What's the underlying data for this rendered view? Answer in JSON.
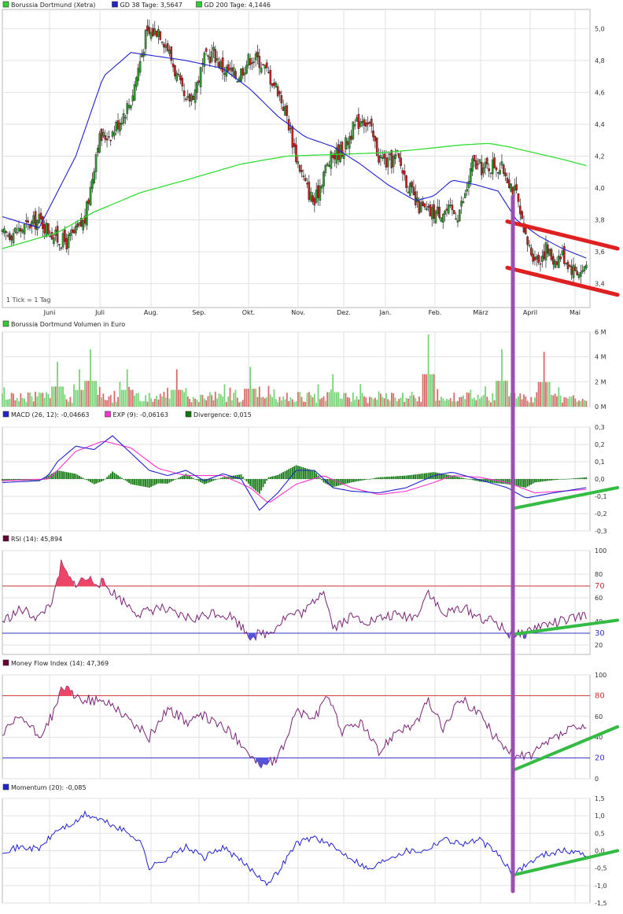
{
  "chart_data": [
    {
      "type": "candlestick",
      "legend": [
        {
          "label": "Borussia Dortmund (Xetra)",
          "color": "#33cc33"
        },
        {
          "label": "GD 38 Tage: 3,5647",
          "color": "#2222cc"
        },
        {
          "label": "GD 200 Tage: 4,1446",
          "color": "#33cc33"
        }
      ],
      "note": "1 Tick = 1 Tag",
      "months": [
        "Juni",
        "Juli",
        "Aug.",
        "Sep.",
        "Okt.",
        "Nov.",
        "Dez.",
        "Jan.",
        "Feb.",
        "März",
        "April",
        "Mai"
      ],
      "y_ticks": [
        "5,0",
        "4,8",
        "4,6",
        "4,4",
        "4,2",
        "4,0",
        "3,8",
        "3,6",
        "3,4"
      ],
      "ylim": [
        3.25,
        5.12
      ],
      "close_path": [
        [
          0,
          3.7
        ],
        [
          10,
          3.74
        ],
        [
          20,
          3.8
        ],
        [
          30,
          3.68
        ],
        [
          35,
          3.66
        ],
        [
          40,
          3.72
        ],
        [
          45,
          3.8
        ],
        [
          48,
          4.0
        ],
        [
          52,
          4.3
        ],
        [
          60,
          4.35
        ],
        [
          65,
          4.45
        ],
        [
          70,
          4.55
        ],
        [
          78,
          4.95
        ],
        [
          85,
          5.0
        ],
        [
          90,
          4.88
        ],
        [
          95,
          4.7
        ],
        [
          100,
          4.52
        ],
        [
          105,
          4.62
        ],
        [
          110,
          4.8
        ],
        [
          115,
          4.85
        ],
        [
          120,
          4.75
        ],
        [
          128,
          4.7
        ],
        [
          135,
          4.82
        ],
        [
          140,
          4.8
        ],
        [
          150,
          4.62
        ],
        [
          155,
          4.45
        ],
        [
          160,
          4.2
        ],
        [
          165,
          4.02
        ],
        [
          170,
          3.9
        ],
        [
          175,
          4.1
        ],
        [
          180,
          4.2
        ],
        [
          186,
          4.25
        ],
        [
          190,
          4.35
        ],
        [
          196,
          4.45
        ],
        [
          200,
          4.38
        ],
        [
          205,
          4.2
        ],
        [
          210,
          4.15
        ],
        [
          215,
          4.2
        ],
        [
          220,
          4.05
        ],
        [
          225,
          3.9
        ],
        [
          232,
          3.84
        ],
        [
          240,
          3.86
        ],
        [
          248,
          3.84
        ],
        [
          252,
          3.95
        ],
        [
          256,
          4.15
        ],
        [
          262,
          4.12
        ],
        [
          268,
          4.15
        ],
        [
          274,
          4.1
        ],
        [
          280,
          3.95
        ],
        [
          284,
          3.7
        ],
        [
          288,
          3.6
        ],
        [
          292,
          3.55
        ],
        [
          296,
          3.62
        ],
        [
          300,
          3.55
        ],
        [
          305,
          3.58
        ],
        [
          310,
          3.5
        ],
        [
          315,
          3.47
        ],
        [
          318,
          3.52
        ]
      ],
      "ma38_path": [
        [
          0,
          3.82
        ],
        [
          20,
          3.75
        ],
        [
          40,
          4.2
        ],
        [
          55,
          4.7
        ],
        [
          70,
          4.85
        ],
        [
          100,
          4.8
        ],
        [
          120,
          4.75
        ],
        [
          135,
          4.62
        ],
        [
          150,
          4.45
        ],
        [
          165,
          4.32
        ],
        [
          180,
          4.26
        ],
        [
          195,
          4.15
        ],
        [
          210,
          4.02
        ],
        [
          225,
          3.92
        ],
        [
          235,
          3.95
        ],
        [
          245,
          4.05
        ],
        [
          258,
          4.02
        ],
        [
          270,
          3.98
        ],
        [
          280,
          3.8
        ],
        [
          292,
          3.7
        ],
        [
          305,
          3.62
        ],
        [
          318,
          3.56
        ]
      ],
      "ma200_path": [
        [
          0,
          3.62
        ],
        [
          30,
          3.72
        ],
        [
          50,
          3.85
        ],
        [
          75,
          3.97
        ],
        [
          100,
          4.05
        ],
        [
          130,
          4.15
        ],
        [
          155,
          4.2
        ],
        [
          180,
          4.21
        ],
        [
          205,
          4.22
        ],
        [
          225,
          4.24
        ],
        [
          250,
          4.27
        ],
        [
          265,
          4.28
        ],
        [
          275,
          4.26
        ],
        [
          290,
          4.22
        ],
        [
          305,
          4.18
        ],
        [
          318,
          4.14
        ]
      ],
      "trend_channel": [
        {
          "from": [
            275,
            3.79
          ],
          "to": [
            335,
            3.62
          ]
        },
        {
          "from": [
            275,
            3.5
          ],
          "to": [
            335,
            3.33
          ]
        }
      ]
    },
    {
      "type": "bar",
      "legend": [
        {
          "label": "Borussia Dortmund Volumen in Euro",
          "color": "#33cc33"
        }
      ],
      "y_ticks": [
        "6 M",
        "4 M",
        "2 M",
        "0 M"
      ],
      "ylim": [
        0,
        6
      ],
      "spikes": [
        [
          30,
          3.6
        ],
        [
          42,
          3.0
        ],
        [
          48,
          4.6
        ],
        [
          68,
          3.0
        ],
        [
          95,
          3.0
        ],
        [
          135,
          3.2
        ],
        [
          180,
          2.6
        ],
        [
          232,
          5.8
        ],
        [
          272,
          4.6
        ],
        [
          295,
          4.4
        ]
      ]
    },
    {
      "type": "line",
      "legend": [
        {
          "label": "MACD (26, 12): -0,04663",
          "color": "#2222cc"
        },
        {
          "label": "EXP (9): -0,06163",
          "color": "#ff33cc"
        },
        {
          "label": "Divergence: 0,015",
          "color": "#117711"
        }
      ],
      "y_ticks": [
        "0,3",
        "0,2",
        "0,1",
        "0,0",
        "-0,1",
        "-0,2",
        "-0,3"
      ],
      "ylim": [
        -0.3,
        0.3
      ],
      "macd_path": [
        [
          0,
          -0.02
        ],
        [
          20,
          -0.01
        ],
        [
          25,
          0.02
        ],
        [
          30,
          0.1
        ],
        [
          40,
          0.19
        ],
        [
          50,
          0.17
        ],
        [
          60,
          0.25
        ],
        [
          70,
          0.15
        ],
        [
          80,
          0.05
        ],
        [
          90,
          0.02
        ],
        [
          100,
          0.05
        ],
        [
          110,
          -0.01
        ],
        [
          120,
          0.03
        ],
        [
          130,
          0.0
        ],
        [
          140,
          -0.18
        ],
        [
          150,
          -0.08
        ],
        [
          160,
          0.05
        ],
        [
          170,
          0.05
        ],
        [
          180,
          -0.05
        ],
        [
          190,
          -0.07
        ],
        [
          205,
          -0.08
        ],
        [
          220,
          -0.05
        ],
        [
          235,
          0.02
        ],
        [
          245,
          0.04
        ],
        [
          255,
          0.01
        ],
        [
          265,
          -0.02
        ],
        [
          275,
          -0.05
        ],
        [
          285,
          -0.11
        ],
        [
          300,
          -0.08
        ],
        [
          318,
          -0.05
        ]
      ],
      "signal_path": [
        [
          0,
          -0.01
        ],
        [
          25,
          0.0
        ],
        [
          30,
          0.05
        ],
        [
          40,
          0.16
        ],
        [
          55,
          0.22
        ],
        [
          70,
          0.18
        ],
        [
          85,
          0.06
        ],
        [
          100,
          0.02
        ],
        [
          120,
          0.02
        ],
        [
          135,
          -0.05
        ],
        [
          145,
          -0.14
        ],
        [
          160,
          -0.03
        ],
        [
          175,
          0.02
        ],
        [
          190,
          -0.05
        ],
        [
          205,
          -0.09
        ],
        [
          220,
          -0.07
        ],
        [
          235,
          -0.02
        ],
        [
          245,
          0.02
        ],
        [
          260,
          0.01
        ],
        [
          275,
          -0.02
        ],
        [
          290,
          -0.08
        ],
        [
          305,
          -0.07
        ],
        [
          318,
          -0.06
        ]
      ],
      "trend_line": {
        "from": [
          278,
          -0.17
        ],
        "to": [
          335,
          -0.05
        ]
      }
    },
    {
      "type": "line",
      "legend": [
        {
          "label": "RSI (14): 45,894",
          "color": "#660033"
        }
      ],
      "y_ticks": [
        "100",
        "80",
        "70",
        "60",
        "40",
        "30",
        "20"
      ],
      "reference_lines": [
        {
          "label": "70",
          "value": 70,
          "color": "#cc3333"
        },
        {
          "label": "30",
          "value": 30,
          "color": "#3333cc"
        }
      ],
      "ylim": [
        12,
        100
      ],
      "path": [
        [
          0,
          40
        ],
        [
          10,
          50
        ],
        [
          20,
          43
        ],
        [
          28,
          60
        ],
        [
          32,
          88
        ],
        [
          38,
          72
        ],
        [
          46,
          76
        ],
        [
          55,
          72
        ],
        [
          65,
          58
        ],
        [
          75,
          46
        ],
        [
          85,
          52
        ],
        [
          95,
          45
        ],
        [
          105,
          42
        ],
        [
          115,
          48
        ],
        [
          125,
          44
        ],
        [
          135,
          28
        ],
        [
          145,
          30
        ],
        [
          155,
          45
        ],
        [
          165,
          48
        ],
        [
          175,
          68
        ],
        [
          180,
          35
        ],
        [
          190,
          44
        ],
        [
          200,
          40
        ],
        [
          212,
          45
        ],
        [
          225,
          44
        ],
        [
          232,
          66
        ],
        [
          240,
          45
        ],
        [
          250,
          52
        ],
        [
          262,
          42
        ],
        [
          268,
          40
        ],
        [
          275,
          30
        ],
        [
          282,
          28
        ],
        [
          292,
          36
        ],
        [
          305,
          40
        ],
        [
          318,
          45
        ]
      ],
      "trend_line": {
        "from": [
          278,
          29
        ],
        "to": [
          335,
          41
        ]
      }
    },
    {
      "type": "line",
      "legend": [
        {
          "label": "Money Flow Index (14): 47,369",
          "color": "#660033"
        }
      ],
      "y_ticks": [
        "100",
        "80",
        "60",
        "40",
        "20",
        "0"
      ],
      "reference_lines": [
        {
          "label": "80",
          "value": 80,
          "color": "#cc3333"
        },
        {
          "label": "20",
          "value": 20,
          "color": "#3333cc"
        }
      ],
      "ylim": [
        0,
        100
      ],
      "path": [
        [
          0,
          42
        ],
        [
          10,
          60
        ],
        [
          20,
          40
        ],
        [
          30,
          70
        ],
        [
          32,
          90
        ],
        [
          40,
          78
        ],
        [
          50,
          75
        ],
        [
          60,
          72
        ],
        [
          70,
          55
        ],
        [
          80,
          40
        ],
        [
          90,
          68
        ],
        [
          100,
          55
        ],
        [
          110,
          60
        ],
        [
          120,
          50
        ],
        [
          130,
          35
        ],
        [
          140,
          12
        ],
        [
          150,
          18
        ],
        [
          160,
          65
        ],
        [
          170,
          58
        ],
        [
          178,
          80
        ],
        [
          185,
          45
        ],
        [
          195,
          55
        ],
        [
          205,
          25
        ],
        [
          215,
          48
        ],
        [
          225,
          52
        ],
        [
          232,
          75
        ],
        [
          240,
          48
        ],
        [
          250,
          78
        ],
        [
          260,
          62
        ],
        [
          268,
          40
        ],
        [
          275,
          30
        ],
        [
          280,
          20
        ],
        [
          290,
          25
        ],
        [
          300,
          38
        ],
        [
          310,
          48
        ],
        [
          318,
          47
        ]
      ],
      "trend_line": {
        "from": [
          278,
          8
        ],
        "to": [
          335,
          50
        ]
      }
    },
    {
      "type": "line",
      "legend": [
        {
          "label": "Momentum (20): -0,085",
          "color": "#2222cc"
        }
      ],
      "y_ticks": [
        "1,5",
        "1,0",
        "0,5",
        "0,0",
        "-0,5",
        "-1,0",
        "-1,5"
      ],
      "ylim": [
        -1.5,
        1.5
      ],
      "path": [
        [
          0,
          0.0
        ],
        [
          10,
          0.1
        ],
        [
          20,
          0.05
        ],
        [
          30,
          0.6
        ],
        [
          40,
          0.8
        ],
        [
          45,
          1.05
        ],
        [
          55,
          0.85
        ],
        [
          65,
          0.6
        ],
        [
          75,
          0.3
        ],
        [
          80,
          -0.5
        ],
        [
          90,
          -0.2
        ],
        [
          100,
          0.1
        ],
        [
          110,
          -0.2
        ],
        [
          120,
          0.1
        ],
        [
          130,
          -0.3
        ],
        [
          145,
          -0.95
        ],
        [
          150,
          -0.6
        ],
        [
          160,
          0.2
        ],
        [
          170,
          0.4
        ],
        [
          180,
          0.1
        ],
        [
          190,
          -0.2
        ],
        [
          200,
          -0.55
        ],
        [
          210,
          -0.2
        ],
        [
          220,
          0.0
        ],
        [
          230,
          0.0
        ],
        [
          240,
          0.35
        ],
        [
          250,
          0.2
        ],
        [
          260,
          0.3
        ],
        [
          270,
          -0.1
        ],
        [
          278,
          -0.7
        ],
        [
          285,
          -0.4
        ],
        [
          295,
          -0.1
        ],
        [
          305,
          0.0
        ],
        [
          318,
          -0.08
        ]
      ],
      "trend_line": {
        "from": [
          278,
          -0.7
        ],
        "to": [
          335,
          0.0
        ]
      }
    }
  ]
}
